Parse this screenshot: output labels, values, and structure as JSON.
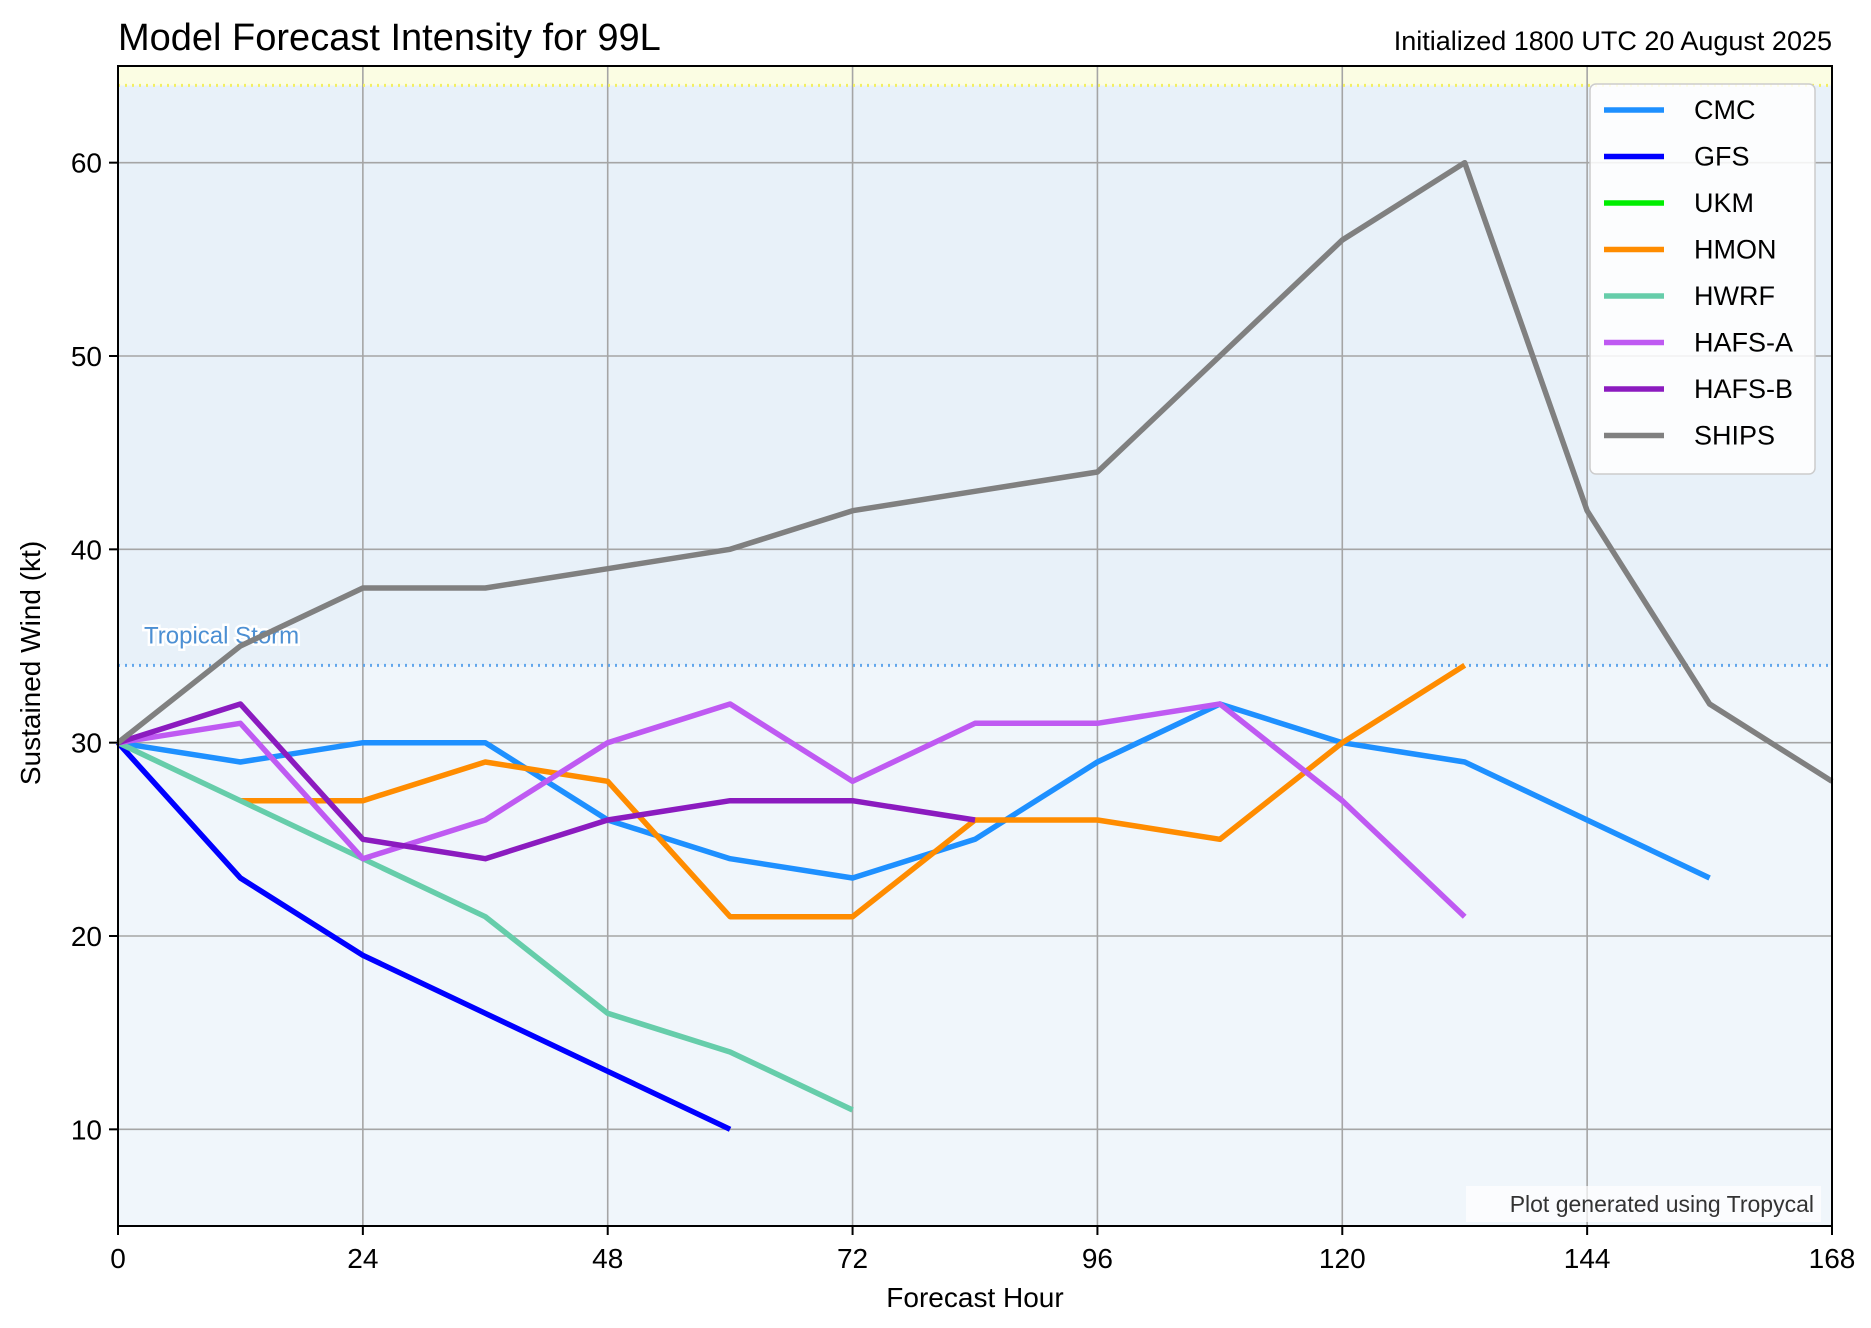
{
  "chart_data": {
    "type": "line",
    "title": "Model Forecast Intensity for 99L",
    "subtitle": "Initialized 1800 UTC 20 August 2025",
    "xlabel": "Forecast Hour",
    "ylabel": "Sustained Wind (kt)",
    "xlim": [
      0,
      168
    ],
    "ylim": [
      5,
      65
    ],
    "xticks": [
      0,
      24,
      48,
      72,
      96,
      120,
      144,
      168
    ],
    "yticks": [
      10,
      20,
      30,
      40,
      50,
      60
    ],
    "grid": true,
    "legend_position": "top-right",
    "threshold_label": "Tropical Storm",
    "threshold_value": 34,
    "hurricane_threshold_value": 64,
    "credit": "Plot generated using Tropycal",
    "colors": {
      "background_lower": "#f0f6fb",
      "background_upper": "#e8f1f9",
      "background_hurricane": "#fbfde3",
      "threshold_line": "#62a7ec",
      "hurricane_line": "#f2ef62",
      "threshold_text": "#4c8fd3",
      "grid": "#a5a5a5"
    },
    "series": [
      {
        "name": "CMC",
        "color": "#1e90ff",
        "x": [
          0,
          12,
          24,
          36,
          48,
          60,
          72,
          84,
          96,
          108,
          120,
          132,
          144,
          156
        ],
        "y": [
          30,
          29,
          30,
          30,
          26,
          24,
          23,
          25,
          29,
          32,
          30,
          29,
          26,
          23
        ]
      },
      {
        "name": "GFS",
        "color": "#0000ff",
        "x": [
          0,
          12,
          24,
          36,
          48,
          60
        ],
        "y": [
          30,
          23,
          19,
          16,
          13,
          10
        ]
      },
      {
        "name": "UKM",
        "color": "#00ee00",
        "x": [],
        "y": []
      },
      {
        "name": "HMON",
        "color": "#ff8c00",
        "x": [
          12,
          24,
          36,
          48,
          60,
          72,
          84,
          96,
          108,
          120,
          132
        ],
        "y": [
          27,
          27,
          29,
          28,
          21,
          21,
          26,
          26,
          25,
          30,
          34
        ]
      },
      {
        "name": "HWRF",
        "color": "#66cdaa",
        "x": [
          0,
          12,
          24,
          36,
          48,
          60,
          72
        ],
        "y": [
          30,
          27,
          24,
          21,
          16,
          14,
          11
        ]
      },
      {
        "name": "HAFS-A",
        "color": "#bf5af2",
        "x": [
          0,
          12,
          24,
          36,
          48,
          60,
          72,
          84,
          96,
          108,
          120,
          132
        ],
        "y": [
          30,
          31,
          24,
          26,
          30,
          32,
          28,
          31,
          31,
          32,
          27,
          21
        ]
      },
      {
        "name": "HAFS-B",
        "color": "#8b1bbf",
        "x": [
          0,
          12,
          24,
          36,
          48,
          60,
          72,
          84
        ],
        "y": [
          30,
          32,
          25,
          24,
          26,
          27,
          27,
          26
        ]
      },
      {
        "name": "SHIPS",
        "color": "#808080",
        "x": [
          0,
          12,
          24,
          36,
          48,
          60,
          72,
          84,
          96,
          108,
          120,
          132,
          144,
          156,
          168
        ],
        "y": [
          30,
          35,
          38,
          38,
          39,
          40,
          42,
          43,
          44,
          50,
          56,
          60,
          42,
          32,
          28
        ]
      }
    ]
  }
}
